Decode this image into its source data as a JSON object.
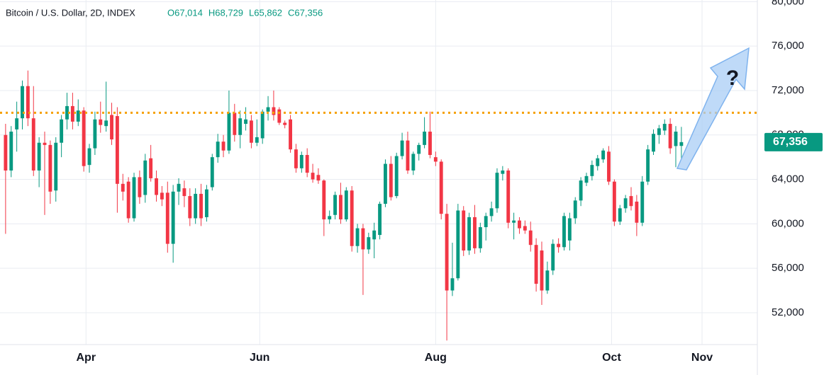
{
  "chart_data": {
    "type": "candlestick",
    "title": "Bitcoin / U.S. Dollar, 2D, INDEX",
    "ohlc_legend": [
      "O67,014",
      "H68,729",
      "L65,862",
      "C67,356"
    ],
    "last_price_label": "67,356",
    "annotation": "?",
    "up_color": "#089981",
    "down_color": "#f23645",
    "hline": {
      "value": 70000,
      "color": "#f5a000"
    },
    "grid": true,
    "xlim": [
      -1,
      134.6
    ],
    "xticks": [
      {
        "value": 14.4,
        "label": "Apr"
      },
      {
        "value": 45.5,
        "label": "Jun"
      },
      {
        "value": 77,
        "label": "Aug"
      },
      {
        "value": 108.5,
        "label": "Oct"
      },
      {
        "value": 124.7,
        "label": "Nov"
      }
    ],
    "ylim": [
      49130,
      80150
    ],
    "yticks": [
      {
        "value": 52000,
        "label": "52,000"
      },
      {
        "value": 56000,
        "label": "56,000"
      },
      {
        "value": 60000,
        "label": "60,000"
      },
      {
        "value": 64000,
        "label": "64,000"
      },
      {
        "value": 68000,
        "label": "68,000"
      },
      {
        "value": 72000,
        "label": "72,000"
      },
      {
        "value": 76000,
        "label": "76,000"
      },
      {
        "value": 80000,
        "label": "80,000"
      }
    ],
    "open": [
      68000,
      64800,
      68500,
      69500,
      72400,
      69500,
      64800,
      67300,
      67100,
      63000,
      67300,
      69400,
      70600,
      69200,
      70200,
      65300,
      66800,
      69400,
      68800,
      69800,
      69700,
      63600,
      63800,
      60500,
      64200,
      62600,
      65900,
      64100,
      62800,
      62800,
      58200,
      62900,
      63200,
      62500,
      60500,
      62700,
      60600,
      63300,
      66000,
      67400,
      66600,
      70000,
      68000,
      69000,
      69300,
      67300,
      67700,
      70100,
      70500,
      70300,
      69100,
      69400,
      66700,
      65000,
      66200,
      64600,
      64400,
      63900,
      60400,
      60800,
      62600,
      60400,
      63000,
      58000,
      59600,
      57700,
      58600,
      59000,
      61800,
      65400,
      62500,
      66100,
      67500,
      64800,
      66300,
      67100,
      68300,
      66000,
      65600,
      60900,
      54000,
      55100,
      61200,
      57600,
      60600,
      57800,
      59700,
      60700,
      61400,
      64500,
      64800,
      60100,
      60300,
      59800,
      59400,
      58100,
      57600,
      54000,
      55800,
      58200,
      57900,
      58500,
      60500,
      62100,
      63700,
      64300,
      65200,
      65800,
      66500,
      63800,
      60200,
      61400,
      62500,
      62000,
      60100,
      63800,
      66500,
      68000,
      68400,
      69000,
      67000,
      67014
    ],
    "high": [
      69000,
      68800,
      71000,
      72900,
      73800,
      72400,
      67800,
      68300,
      67500,
      67800,
      69800,
      71800,
      71800,
      71200,
      70500,
      67200,
      70100,
      71000,
      72800,
      70900,
      70500,
      64500,
      64200,
      64600,
      64800,
      66300,
      67100,
      64800,
      63400,
      63800,
      63500,
      64100,
      63900,
      63200,
      63200,
      63600,
      63500,
      66300,
      68100,
      68000,
      72000,
      70800,
      70200,
      70500,
      69800,
      69400,
      70300,
      71500,
      72000,
      70500,
      69300,
      69800,
      67200,
      66500,
      66800,
      65400,
      65000,
      64000,
      61200,
      62900,
      63700,
      63300,
      63400,
      60000,
      60000,
      59200,
      60100,
      62000,
      65800,
      66100,
      66400,
      68200,
      68300,
      66500,
      67300,
      69600,
      70100,
      66500,
      65800,
      61800,
      58300,
      61800,
      61600,
      61000,
      61700,
      60100,
      61000,
      62000,
      65000,
      65200,
      65000,
      61000,
      60600,
      60300,
      60200,
      58700,
      58400,
      56600,
      58600,
      58700,
      61000,
      61000,
      62400,
      64200,
      64600,
      65700,
      66200,
      66800,
      67000,
      64000,
      61700,
      62600,
      63300,
      62600,
      64300,
      67100,
      68500,
      68900,
      69400,
      69500,
      68800,
      68729
    ],
    "low": [
      59100,
      64200,
      66500,
      68500,
      68800,
      64300,
      63300,
      60800,
      61800,
      62000,
      66000,
      68500,
      68500,
      68800,
      64700,
      64600,
      66200,
      68200,
      68300,
      67100,
      61000,
      62100,
      60100,
      60200,
      61800,
      61900,
      63800,
      62000,
      61600,
      57400,
      56500,
      61700,
      61500,
      59800,
      60000,
      59800,
      60200,
      63000,
      65500,
      66000,
      66300,
      67400,
      66800,
      68400,
      66800,
      67000,
      67200,
      69300,
      69300,
      68900,
      68600,
      66400,
      64600,
      64600,
      64200,
      63700,
      63600,
      58900,
      60000,
      60400,
      60000,
      60200,
      57500,
      57400,
      53600,
      57300,
      56900,
      58600,
      61500,
      62100,
      62300,
      65800,
      64500,
      64400,
      65700,
      66800,
      65900,
      65200,
      60400,
      49500,
      53500,
      54900,
      57100,
      57200,
      57300,
      57400,
      58500,
      60200,
      61000,
      63900,
      59600,
      58600,
      59100,
      59100,
      57500,
      53900,
      52700,
      53700,
      55400,
      57400,
      57600,
      57600,
      60000,
      61600,
      63400,
      63900,
      64800,
      65500,
      63500,
      59800,
      59900,
      61000,
      61200,
      58900,
      59800,
      63500,
      66200,
      67200,
      68000,
      66300,
      65100,
      65862
    ],
    "close": [
      64800,
      68300,
      69500,
      72400,
      69500,
      64800,
      67300,
      67100,
      62900,
      67300,
      69400,
      70600,
      69200,
      70200,
      65200,
      66800,
      69400,
      68900,
      69300,
      67600,
      63600,
      62900,
      60500,
      64200,
      62400,
      65700,
      64100,
      62600,
      62200,
      58200,
      62900,
      63600,
      62500,
      60500,
      62700,
      60500,
      63100,
      66000,
      67400,
      66600,
      70000,
      68000,
      69500,
      69400,
      67300,
      67800,
      70100,
      70500,
      69800,
      69100,
      68900,
      66700,
      65000,
      66200,
      64600,
      64000,
      63900,
      60400,
      60700,
      62600,
      60400,
      63000,
      58000,
      59600,
      57700,
      58800,
      59400,
      61800,
      65400,
      62400,
      66100,
      67500,
      64800,
      66300,
      67100,
      68300,
      66200,
      65600,
      60900,
      54000,
      55100,
      61200,
      57600,
      60600,
      57800,
      59700,
      60700,
      61400,
      64600,
      64800,
      60100,
      60300,
      59600,
      59400,
      58100,
      54600,
      54000,
      55800,
      58200,
      57900,
      60700,
      60500,
      62100,
      63900,
      64300,
      65300,
      65900,
      66600,
      63800,
      60200,
      61400,
      62300,
      61600,
      60100,
      63800,
      66700,
      68100,
      68600,
      69000,
      66800,
      68300,
      67356
    ]
  }
}
